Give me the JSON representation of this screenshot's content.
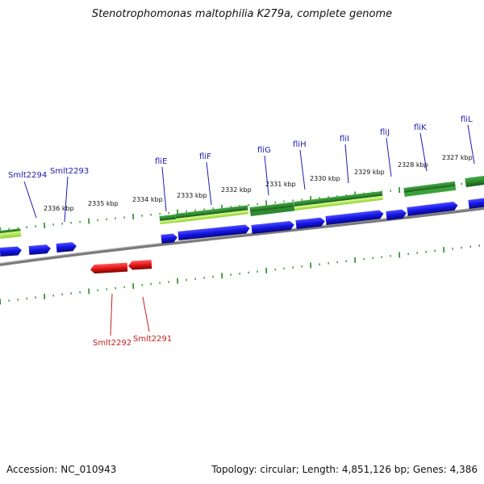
{
  "header": {
    "title": "Stenotrophomonas maltophilia K279a, complete genome"
  },
  "footer": {
    "accession": "Accession: NC_010943",
    "stats": "Topology: circular; Length: 4,851,126 bp; Genes: 4,386"
  },
  "map": {
    "kbp_labels": [
      "2336 kbp",
      "2335 kbp",
      "2334 kbp",
      "2333 kbp",
      "2332 kbp",
      "2331 kbp",
      "2330 kbp",
      "2329 kbp",
      "2328 kbp",
      "2327 kbp"
    ],
    "top_genes": [
      "Smlt2294",
      "Smlt2293",
      "fliE",
      "fliF",
      "fliG",
      "fliH",
      "fliI",
      "fliJ",
      "fliK",
      "fliL"
    ],
    "bottom_genes": [
      "Smlt2292",
      "Smlt2291"
    ]
  },
  "colors": {
    "forward_gene": "#1414e6",
    "reverse_gene": "#e61414",
    "operon_dark": "#2e8b2e",
    "operon_light": "#9fe63c",
    "backbone": "#808080",
    "tick": "#228b22"
  }
}
